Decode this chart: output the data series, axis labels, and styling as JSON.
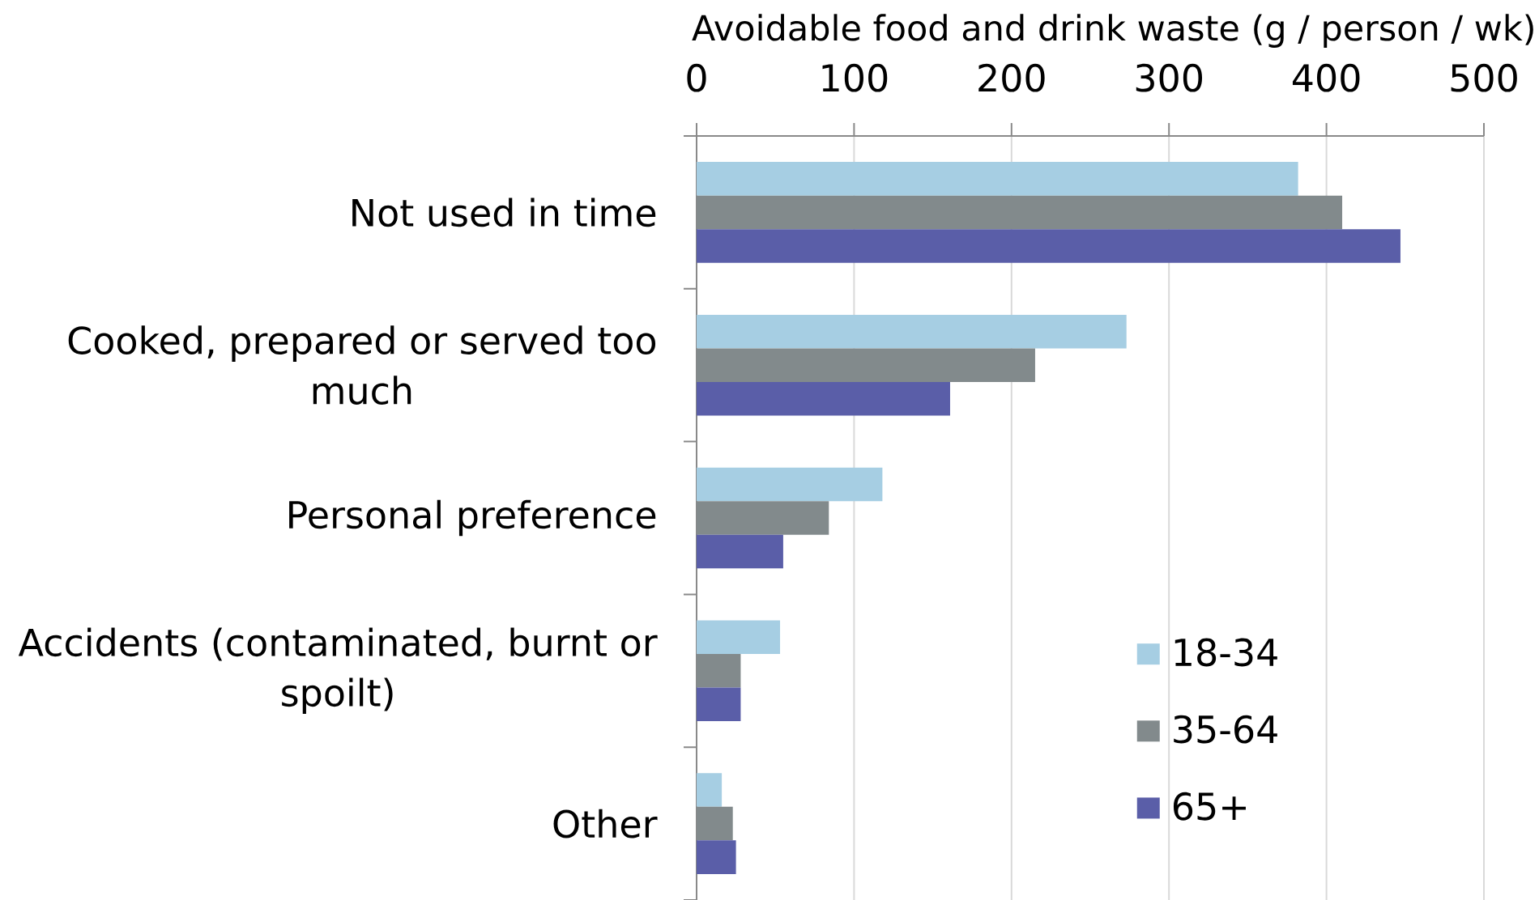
{
  "chart_data": {
    "type": "bar",
    "orientation": "horizontal",
    "xlabel": "Avoidable food and drink waste (g / person / wk)",
    "categories": [
      "Not used in time",
      "Cooked, prepared or served too much",
      "Personal preference",
      "Accidents (contaminated, burnt or spoilt)",
      "Other"
    ],
    "series": [
      {
        "name": "18-34",
        "color": "#a6cee3",
        "values": [
          382,
          273,
          118,
          53,
          16
        ]
      },
      {
        "name": "35-64",
        "color": "#828a8c",
        "values": [
          410,
          215,
          84,
          28,
          23
        ]
      },
      {
        "name": "65+",
        "color": "#5a5ea8",
        "values": [
          447,
          161,
          55,
          28,
          25
        ]
      }
    ],
    "xlim": [
      0,
      500
    ],
    "xticks": [
      0,
      100,
      200,
      300,
      400,
      500
    ],
    "grid": "x",
    "legend": "bottom right"
  }
}
